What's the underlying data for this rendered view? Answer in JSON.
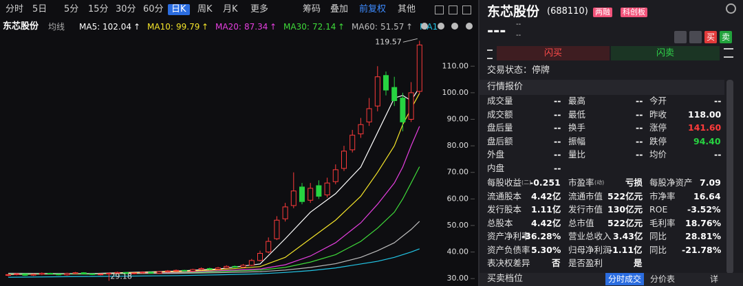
{
  "toolbar": {
    "periods": [
      "分时",
      "5日",
      "5分",
      "15分",
      "30分",
      "60分",
      "日K",
      "周K",
      "月K",
      "更多"
    ],
    "active": 6,
    "tools": [
      "筹码",
      "叠加",
      "前复权",
      "其他"
    ]
  },
  "chart_data": {
    "type": "candlestick",
    "title": "东芯股份",
    "indicator": "均线",
    "open": [
      31.2,
      31.5,
      31.8,
      31.3,
      31.6,
      32.0,
      31.7,
      31.4,
      31.9,
      32.2,
      31.8,
      31.5,
      31.7,
      32.0,
      32.3,
      31.9,
      32.1,
      32.4,
      32.0,
      32.6,
      32.9,
      33.1,
      32.8,
      33.4,
      33.8,
      33.5,
      34.0,
      34.6,
      34.3,
      35.0,
      36.8,
      40.0,
      45.0,
      52.5,
      57.5,
      64.5,
      59.5,
      65.0,
      61.5,
      66.5,
      71.5,
      78.5,
      84.5,
      89.0,
      95.0,
      106.5,
      102.0,
      98.0,
      90.0,
      100.5
    ],
    "high": [
      31.8,
      32.1,
      32.0,
      31.9,
      32.3,
      32.2,
      31.9,
      32.2,
      32.5,
      32.4,
      32.0,
      31.9,
      32.3,
      32.6,
      32.5,
      32.3,
      32.7,
      32.7,
      32.9,
      33.2,
      33.4,
      33.3,
      33.7,
      34.2,
      34.1,
      34.4,
      35.0,
      34.9,
      35.5,
      37.4,
      40.5,
      45.5,
      53.5,
      58.5,
      70.0,
      66.0,
      66.0,
      67.0,
      68.0,
      73.0,
      80.0,
      86.0,
      90.5,
      98.0,
      110.0,
      108.0,
      106.0,
      100.0,
      104.0,
      119.57
    ],
    "low": [
      30.9,
      31.2,
      31.0,
      31.0,
      31.3,
      31.5,
      31.2,
      31.1,
      31.6,
      31.6,
      31.3,
      31.2,
      29.18,
      31.7,
      31.7,
      31.6,
      31.8,
      31.8,
      31.8,
      32.3,
      32.6,
      32.5,
      32.5,
      33.1,
      33.2,
      33.2,
      33.7,
      34.0,
      34.0,
      34.7,
      36.5,
      39.5,
      44.5,
      51.5,
      56.5,
      58.0,
      58.5,
      60.0,
      60.5,
      65.5,
      70.5,
      77.5,
      83.0,
      87.5,
      93.0,
      99.0,
      95.0,
      85.5,
      89.0,
      99.5
    ],
    "close": [
      31.5,
      31.8,
      31.2,
      31.6,
      32.0,
      31.7,
      31.4,
      31.9,
      32.2,
      31.8,
      31.5,
      31.7,
      32.0,
      32.3,
      31.9,
      32.1,
      32.4,
      32.0,
      32.6,
      32.9,
      33.1,
      32.8,
      33.4,
      33.8,
      33.5,
      34.0,
      34.6,
      34.3,
      35.0,
      36.8,
      39.5,
      44.0,
      52.0,
      57.0,
      63.0,
      59.0,
      64.0,
      61.0,
      66.0,
      71.0,
      78.0,
      84.0,
      88.0,
      94.0,
      106.0,
      101.0,
      97.0,
      89.0,
      100.0,
      118.0
    ],
    "up_color": "#ff3b3b",
    "down_color": "#27d341",
    "ylim": [
      27.2,
      122.5
    ],
    "yticks": [
      {
        "value": 30,
        "label": "30.00"
      },
      {
        "value": 40,
        "label": "40.00"
      },
      {
        "value": 50,
        "label": "50.00"
      },
      {
        "value": 60,
        "label": "60.00"
      },
      {
        "value": 70,
        "label": "70.00"
      },
      {
        "value": 80,
        "label": "80.00"
      },
      {
        "value": 90,
        "label": "90.00"
      },
      {
        "value": 100,
        "label": "100.00"
      },
      {
        "value": 110,
        "label": "110.00"
      }
    ],
    "ma_x": [
      0,
      10,
      20,
      25,
      30,
      33,
      36,
      39,
      42,
      44,
      46,
      47,
      48,
      49
    ],
    "series": [
      {
        "name": "MA5:",
        "color": "#ffffff",
        "trend": "↑",
        "values": [
          31.5,
          31.9,
          32.8,
          33.6,
          35.5,
          45,
          55,
          62,
          72,
          85,
          98,
          99,
          97,
          102.04
        ]
      },
      {
        "name": "MA10:",
        "color": "#f5e52a",
        "trend": "↑",
        "values": [
          31.6,
          31.8,
          32.6,
          33.3,
          34.5,
          38,
          45,
          52,
          61,
          70,
          80,
          88,
          94,
          99.79
        ]
      },
      {
        "name": "MA20:",
        "color": "#e63fe0",
        "trend": "↑",
        "values": [
          31.7,
          31.7,
          32.3,
          32.9,
          33.6,
          35.2,
          38.5,
          43.5,
          51,
          58,
          66,
          72,
          80,
          87.34
        ]
      },
      {
        "name": "MA30:",
        "color": "#3fdc3a",
        "trend": "↑",
        "values": [
          31.8,
          31.7,
          32.1,
          32.6,
          33.2,
          34.2,
          36.2,
          39,
          44,
          49,
          55,
          60,
          66,
          72.14
        ]
      },
      {
        "name": "MA60:",
        "color": "#bdbdbd",
        "trend": "↑",
        "values": [
          32,
          31.9,
          32,
          32.2,
          32.6,
          33.2,
          34.2,
          35.6,
          38,
          40.5,
          43.5,
          46,
          48.5,
          51.57
        ]
      },
      {
        "name": "MA1",
        "color": "#22c7e8",
        "values": [
          30.5,
          30.8,
          31.1,
          31.4,
          31.8,
          32.3,
          33,
          34,
          35.5,
          36.5,
          38,
          39,
          40,
          41.2
        ]
      }
    ]
  },
  "stock": {
    "name": "东芯股份",
    "code": "(688110)",
    "tags": [
      "两融",
      "科创板"
    ],
    "price": "---",
    "change": [
      "--",
      "--"
    ]
  },
  "actions": {
    "buy": "买",
    "sell": "卖",
    "flash_buy": "闪买",
    "flash_sell": "闪卖"
  },
  "status": "交易状态：停牌",
  "quote": {
    "title": "行情报价",
    "rows": [
      [
        {
          "label": "成交量",
          "value": "--"
        },
        {
          "label": "最高",
          "value": "--"
        },
        {
          "label": "今开",
          "value": "--"
        }
      ],
      [
        {
          "label": "成交额",
          "value": "--"
        },
        {
          "label": "最低",
          "value": "--"
        },
        {
          "label": "昨收",
          "value": "118.00"
        }
      ],
      [
        {
          "label": "盘后量",
          "value": "--"
        },
        {
          "label": "换手",
          "value": "--"
        },
        {
          "label": "涨停",
          "value": "141.60",
          "color": "#ff3b3b"
        }
      ],
      [
        {
          "label": "盘后额",
          "value": "--"
        },
        {
          "label": "振幅",
          "value": "--"
        },
        {
          "label": "跌停",
          "value": "94.40",
          "color": "#27d341"
        }
      ],
      [
        {
          "label": "外盘",
          "value": "--"
        },
        {
          "label": "量比",
          "value": "--"
        },
        {
          "label": "均价",
          "value": "--"
        }
      ],
      [
        {
          "label": "内盘",
          "value": "--"
        }
      ]
    ]
  },
  "fundamentals": {
    "rows": [
      [
        {
          "label": "每股收益",
          "sub": "(二)",
          "value": "-0.251"
        },
        {
          "label": "市盈率",
          "sub": "(动)",
          "value": "亏损"
        },
        {
          "label": "每股净资产",
          "value": "7.09"
        }
      ],
      [
        {
          "label": "流通股本",
          "value": "4.42亿"
        },
        {
          "label": "流通市值",
          "value": "522亿元"
        },
        {
          "label": "市净率",
          "value": "16.64"
        }
      ],
      [
        {
          "label": "发行股本",
          "value": "1.11亿"
        },
        {
          "label": "发行市值",
          "value": "130亿元"
        },
        {
          "label": "ROE",
          "value": "-3.52%"
        }
      ],
      [
        {
          "label": "总股本",
          "value": "4.42亿"
        },
        {
          "label": "总市值",
          "value": "522亿元"
        },
        {
          "label": "毛利率",
          "value": "18.76%"
        }
      ],
      [
        {
          "label": "资产净利率",
          "value": "-36.28%"
        },
        {
          "label": "营业总收入",
          "value": "3.43亿"
        },
        {
          "label": "同比",
          "value": "28.81%"
        }
      ],
      [
        {
          "label": "资产负债率",
          "value": "5.30%"
        },
        {
          "label": "归母净利润",
          "value": "-1.11亿"
        },
        {
          "label": "同比",
          "value": "-21.78%"
        }
      ],
      [
        {
          "label": "表决权差异",
          "value": "否"
        },
        {
          "label": "是否盈利",
          "value": "是"
        }
      ]
    ]
  },
  "footer": {
    "title": "买卖档位",
    "tabs": [
      "分时成交",
      "分价表"
    ],
    "detail": "详"
  }
}
